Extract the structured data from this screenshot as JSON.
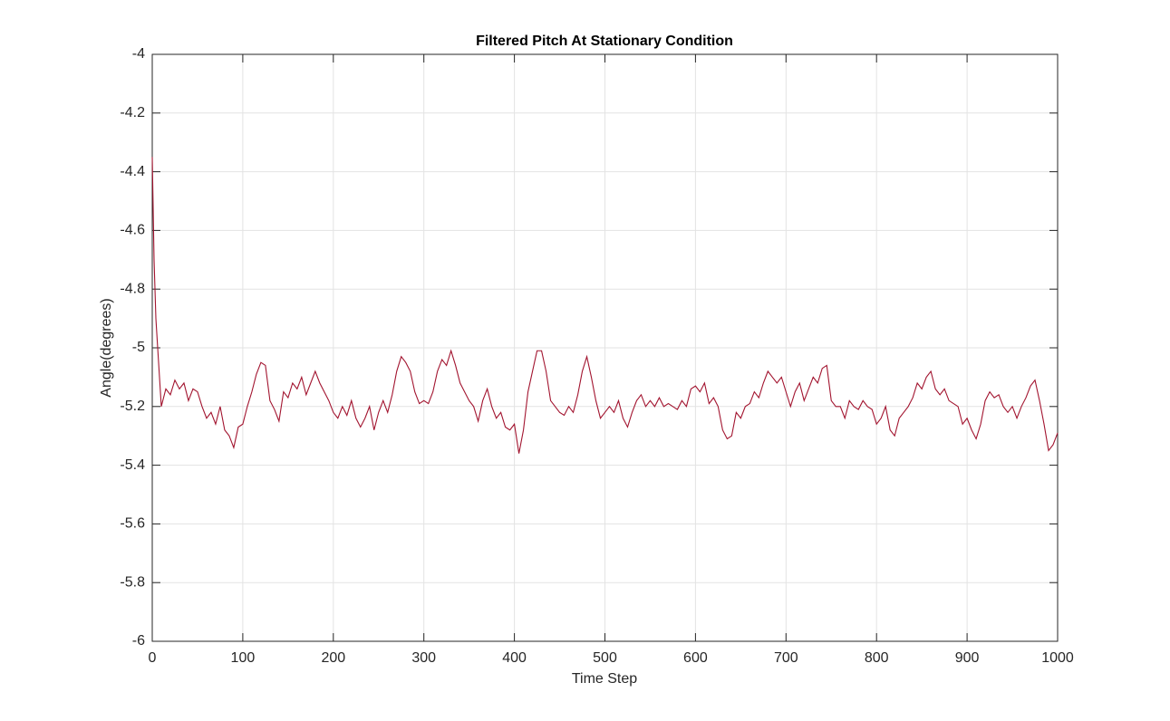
{
  "chart_data": {
    "type": "line",
    "title": "Filtered Pitch At Stationary Condition",
    "x_label": "Time Step",
    "y_label": "Angle(degrees)",
    "xlim": [
      0,
      1000
    ],
    "ylim": [
      -6,
      -4
    ],
    "xticks": [
      0,
      100,
      200,
      300,
      400,
      500,
      600,
      700,
      800,
      900,
      1000
    ],
    "yticks": [
      -6,
      -5.8,
      -5.6,
      -5.4,
      -5.2,
      -5,
      -4.8,
      -4.6,
      -4.4,
      -4.2,
      -4
    ],
    "grid": true,
    "x": [
      0,
      2,
      4,
      6,
      8,
      10,
      15,
      20,
      25,
      30,
      35,
      40,
      45,
      50,
      55,
      60,
      65,
      70,
      75,
      80,
      85,
      90,
      95,
      100,
      105,
      110,
      115,
      120,
      125,
      130,
      135,
      140,
      145,
      150,
      155,
      160,
      165,
      170,
      175,
      180,
      185,
      190,
      195,
      200,
      205,
      210,
      215,
      220,
      225,
      230,
      235,
      240,
      245,
      250,
      255,
      260,
      265,
      270,
      275,
      280,
      285,
      290,
      295,
      300,
      305,
      310,
      315,
      320,
      325,
      330,
      335,
      340,
      345,
      350,
      355,
      360,
      365,
      370,
      375,
      380,
      385,
      390,
      395,
      400,
      405,
      410,
      415,
      420,
      425,
      430,
      435,
      440,
      445,
      450,
      455,
      460,
      465,
      470,
      475,
      480,
      485,
      490,
      495,
      500,
      505,
      510,
      515,
      520,
      525,
      530,
      535,
      540,
      545,
      550,
      555,
      560,
      565,
      570,
      575,
      580,
      585,
      590,
      595,
      600,
      605,
      610,
      615,
      620,
      625,
      630,
      635,
      640,
      645,
      650,
      655,
      660,
      665,
      670,
      675,
      680,
      685,
      690,
      695,
      700,
      705,
      710,
      715,
      720,
      725,
      730,
      735,
      740,
      745,
      750,
      755,
      760,
      765,
      770,
      775,
      780,
      785,
      790,
      795,
      800,
      805,
      810,
      815,
      820,
      825,
      830,
      835,
      840,
      845,
      850,
      855,
      860,
      865,
      870,
      875,
      880,
      885,
      890,
      895,
      900,
      905,
      910,
      915,
      920,
      925,
      930,
      935,
      940,
      945,
      950,
      955,
      960,
      965,
      970,
      975,
      980,
      985,
      990,
      995,
      1000
    ],
    "series": [
      {
        "name": "Filtered Pitch",
        "color": "#a2142f",
        "values": [
          -4.35,
          -4.7,
          -4.9,
          -5.0,
          -5.1,
          -5.2,
          -5.14,
          -5.16,
          -5.11,
          -5.14,
          -5.12,
          -5.18,
          -5.14,
          -5.15,
          -5.2,
          -5.24,
          -5.22,
          -5.26,
          -5.2,
          -5.28,
          -5.3,
          -5.34,
          -5.27,
          -5.26,
          -5.2,
          -5.15,
          -5.09,
          -5.05,
          -5.06,
          -5.18,
          -5.21,
          -5.25,
          -5.15,
          -5.17,
          -5.12,
          -5.14,
          -5.1,
          -5.16,
          -5.12,
          -5.08,
          -5.12,
          -5.15,
          -5.18,
          -5.22,
          -5.24,
          -5.2,
          -5.23,
          -5.18,
          -5.24,
          -5.27,
          -5.24,
          -5.2,
          -5.28,
          -5.22,
          -5.18,
          -5.22,
          -5.16,
          -5.08,
          -5.03,
          -5.05,
          -5.08,
          -5.15,
          -5.19,
          -5.18,
          -5.19,
          -5.15,
          -5.08,
          -5.04,
          -5.06,
          -5.01,
          -5.06,
          -5.12,
          -5.15,
          -5.18,
          -5.2,
          -5.25,
          -5.18,
          -5.14,
          -5.2,
          -5.24,
          -5.22,
          -5.27,
          -5.28,
          -5.26,
          -5.36,
          -5.28,
          -5.15,
          -5.08,
          -5.01,
          -5.01,
          -5.08,
          -5.18,
          -5.2,
          -5.22,
          -5.23,
          -5.2,
          -5.22,
          -5.16,
          -5.08,
          -5.03,
          -5.1,
          -5.18,
          -5.24,
          -5.22,
          -5.2,
          -5.22,
          -5.18,
          -5.24,
          -5.27,
          -5.22,
          -5.18,
          -5.16,
          -5.2,
          -5.18,
          -5.2,
          -5.17,
          -5.2,
          -5.19,
          -5.2,
          -5.21,
          -5.18,
          -5.2,
          -5.14,
          -5.13,
          -5.15,
          -5.12,
          -5.19,
          -5.17,
          -5.2,
          -5.28,
          -5.31,
          -5.3,
          -5.22,
          -5.24,
          -5.2,
          -5.19,
          -5.15,
          -5.17,
          -5.12,
          -5.08,
          -5.1,
          -5.12,
          -5.1,
          -5.15,
          -5.2,
          -5.15,
          -5.12,
          -5.18,
          -5.14,
          -5.1,
          -5.12,
          -5.07,
          -5.06,
          -5.18,
          -5.2,
          -5.2,
          -5.24,
          -5.18,
          -5.2,
          -5.21,
          -5.18,
          -5.2,
          -5.21,
          -5.26,
          -5.24,
          -5.2,
          -5.28,
          -5.3,
          -5.24,
          -5.22,
          -5.2,
          -5.17,
          -5.12,
          -5.14,
          -5.1,
          -5.08,
          -5.14,
          -5.16,
          -5.14,
          -5.18,
          -5.19,
          -5.2,
          -5.26,
          -5.24,
          -5.28,
          -5.31,
          -5.26,
          -5.18,
          -5.15,
          -5.17,
          -5.16,
          -5.2,
          -5.22,
          -5.2,
          -5.24,
          -5.2,
          -5.17,
          -5.13,
          -5.11,
          -5.18,
          -5.26,
          -5.35,
          -5.33,
          -5.29
        ]
      }
    ]
  }
}
